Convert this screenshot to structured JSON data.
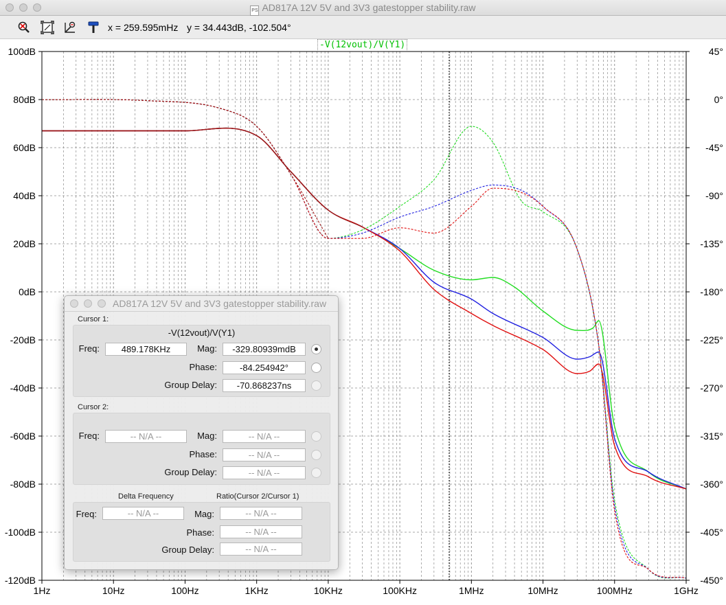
{
  "window": {
    "title": "AD817A 12V 5V and 3V3 gatestopper stability.raw",
    "doc_icon": "PS"
  },
  "toolbar": {
    "buttons": [
      "zoom-icon",
      "zoom-extents-icon",
      "autorange-icon",
      "hammer-icon"
    ],
    "x_readout": "x = 259.595mHz",
    "y_readout": "y = 34.443dB, -102.504°"
  },
  "plot": {
    "trace_label": "-V(12vout)/V(Y1)",
    "colors": {
      "green": "#22dd22",
      "blue": "#2020e0",
      "red": "#e01010",
      "dark": "#a01818"
    }
  },
  "chart_data": {
    "type": "line",
    "title": "",
    "x_scale": "log",
    "x_ticks": [
      "1Hz",
      "10Hz",
      "100Hz",
      "1KHz",
      "10KHz",
      "100KHz",
      "1MHz",
      "10MHz",
      "100MHz",
      "1GHz"
    ],
    "y_ticks": [
      "100dB",
      "80dB",
      "60dB",
      "40dB",
      "20dB",
      "0dB",
      "-20dB",
      "-40dB",
      "-60dB",
      "-80dB",
      "-100dB",
      "-120dB"
    ],
    "y2_ticks": [
      "45°",
      "0°",
      "-45°",
      "-90°",
      "-135°",
      "-180°",
      "-225°",
      "-270°",
      "-315°",
      "-360°",
      "-405°",
      "-450°"
    ],
    "ylim": [
      -120,
      100
    ],
    "y2lim": [
      -450,
      45
    ],
    "grid": true,
    "cursor_x_hz": 489178,
    "series": [
      {
        "name": "-V(12vout)/V(Y1)",
        "color": "green",
        "kind": "magnitude",
        "points": [
          [
            1,
            67
          ],
          [
            100,
            67
          ],
          [
            1000,
            65
          ],
          [
            3000,
            50
          ],
          [
            10000,
            34
          ],
          [
            30000,
            27
          ],
          [
            100000,
            18
          ],
          [
            300000,
            9
          ],
          [
            1000000,
            5
          ],
          [
            2000000,
            6
          ],
          [
            4000000,
            2
          ],
          [
            10000000,
            -8
          ],
          [
            30000000,
            -16
          ],
          [
            50000000,
            -15
          ],
          [
            60000000,
            -12
          ],
          [
            100000000,
            -56
          ],
          [
            300000000,
            -75
          ],
          [
            1000000000,
            -82
          ]
        ]
      },
      {
        "color": "blue",
        "kind": "magnitude",
        "points": [
          [
            1,
            67
          ],
          [
            100,
            67
          ],
          [
            1000,
            65
          ],
          [
            3000,
            50
          ],
          [
            10000,
            34
          ],
          [
            30000,
            27
          ],
          [
            100000,
            18
          ],
          [
            300000,
            4
          ],
          [
            1000000,
            -3
          ],
          [
            2000000,
            -9
          ],
          [
            10000000,
            -19
          ],
          [
            30000000,
            -28
          ],
          [
            45000000,
            -27
          ],
          [
            60000000,
            -25
          ],
          [
            100000000,
            -61
          ],
          [
            300000000,
            -75
          ],
          [
            1000000000,
            -82
          ]
        ]
      },
      {
        "color": "red",
        "kind": "magnitude",
        "points": [
          [
            1,
            67
          ],
          [
            100,
            67
          ],
          [
            1000,
            65
          ],
          [
            3000,
            50
          ],
          [
            10000,
            34
          ],
          [
            30000,
            27
          ],
          [
            100000,
            17
          ],
          [
            300000,
            1
          ],
          [
            1000000,
            -9
          ],
          [
            2000000,
            -14
          ],
          [
            10000000,
            -24
          ],
          [
            30000000,
            -34
          ],
          [
            45000000,
            -33
          ],
          [
            60000000,
            -30
          ],
          [
            100000000,
            -64
          ],
          [
            300000000,
            -77
          ],
          [
            1000000000,
            -82
          ]
        ]
      },
      {
        "color": "dark",
        "kind": "magnitude",
        "points": [
          [
            1,
            67
          ],
          [
            100,
            67
          ],
          [
            1000,
            65
          ],
          [
            3000,
            50
          ],
          [
            10000,
            34
          ],
          [
            30000,
            27
          ]
        ]
      },
      {
        "color": "green",
        "kind": "phase",
        "points": [
          [
            1,
            0
          ],
          [
            30,
            -1
          ],
          [
            300,
            -8
          ],
          [
            1000,
            -25
          ],
          [
            3000,
            -70
          ],
          [
            10000,
            -130
          ],
          [
            30000,
            -122
          ],
          [
            100000,
            -100
          ],
          [
            300000,
            -75
          ],
          [
            1000000,
            -25
          ],
          [
            2000000,
            -40
          ],
          [
            5000000,
            -95
          ],
          [
            10000000,
            -105
          ],
          [
            30000000,
            -140
          ],
          [
            60000000,
            -230
          ],
          [
            100000000,
            -375
          ],
          [
            300000000,
            -440
          ],
          [
            1000000000,
            -448
          ]
        ]
      },
      {
        "color": "blue",
        "kind": "phase",
        "points": [
          [
            1,
            0
          ],
          [
            30,
            -1
          ],
          [
            300,
            -8
          ],
          [
            1000,
            -25
          ],
          [
            3000,
            -70
          ],
          [
            10000,
            -130
          ],
          [
            30000,
            -125
          ],
          [
            100000,
            -110
          ],
          [
            300000,
            -100
          ],
          [
            1000000,
            -85
          ],
          [
            2000000,
            -80
          ],
          [
            5000000,
            -85
          ],
          [
            10000000,
            -100
          ],
          [
            30000000,
            -140
          ],
          [
            60000000,
            -230
          ],
          [
            100000000,
            -380
          ],
          [
            300000000,
            -440
          ],
          [
            1000000000,
            -448
          ]
        ]
      },
      {
        "color": "red",
        "kind": "phase",
        "points": [
          [
            1,
            0
          ],
          [
            30,
            -1
          ],
          [
            300,
            -8
          ],
          [
            1000,
            -25
          ],
          [
            3000,
            -70
          ],
          [
            10000,
            -130
          ],
          [
            30000,
            -130
          ],
          [
            100000,
            -120
          ],
          [
            300000,
            -125
          ],
          [
            1000000,
            -100
          ],
          [
            2000000,
            -83
          ],
          [
            5000000,
            -87
          ],
          [
            10000000,
            -100
          ],
          [
            30000000,
            -140
          ],
          [
            60000000,
            -230
          ],
          [
            100000000,
            -385
          ],
          [
            300000000,
            -440
          ],
          [
            1000000000,
            -448
          ]
        ]
      },
      {
        "color": "dark",
        "kind": "phase",
        "points": [
          [
            1,
            0
          ],
          [
            30,
            -1
          ],
          [
            300,
            -8
          ],
          [
            1000,
            -25
          ],
          [
            3000,
            -70
          ],
          [
            10000,
            -130
          ]
        ]
      }
    ]
  },
  "dialog": {
    "title": "AD817A 12V 5V and 3V3 gatestopper stability.raw",
    "cursor1": {
      "header": "Cursor 1:",
      "expr": "-V(12vout)/V(Y1)",
      "freq_label": "Freq:",
      "freq": "489.178KHz",
      "mag_label": "Mag:",
      "mag": "-329.80939mdB",
      "phase_label": "Phase:",
      "phase": "-84.254942°",
      "gd_label": "Group Delay:",
      "gd": "-70.868237ns"
    },
    "cursor2": {
      "header": "Cursor 2:",
      "freq_label": "Freq:",
      "freq": "-- N/A --",
      "mag_label": "Mag:",
      "mag": "-- N/A --",
      "phase_label": "Phase:",
      "phase": "-- N/A --",
      "gd_label": "Group Delay:",
      "gd": "-- N/A --"
    },
    "delta": {
      "delta_header": "Delta Frequency",
      "ratio_header": "Ratio(Cursor 2/Cursor 1)",
      "freq_label": "Freq:",
      "freq": "-- N/A --",
      "mag_label": "Mag:",
      "mag": "-- N/A --",
      "phase_label": "Phase:",
      "phase": "-- N/A --",
      "gd_label": "Group Delay:",
      "gd": "-- N/A --"
    }
  }
}
